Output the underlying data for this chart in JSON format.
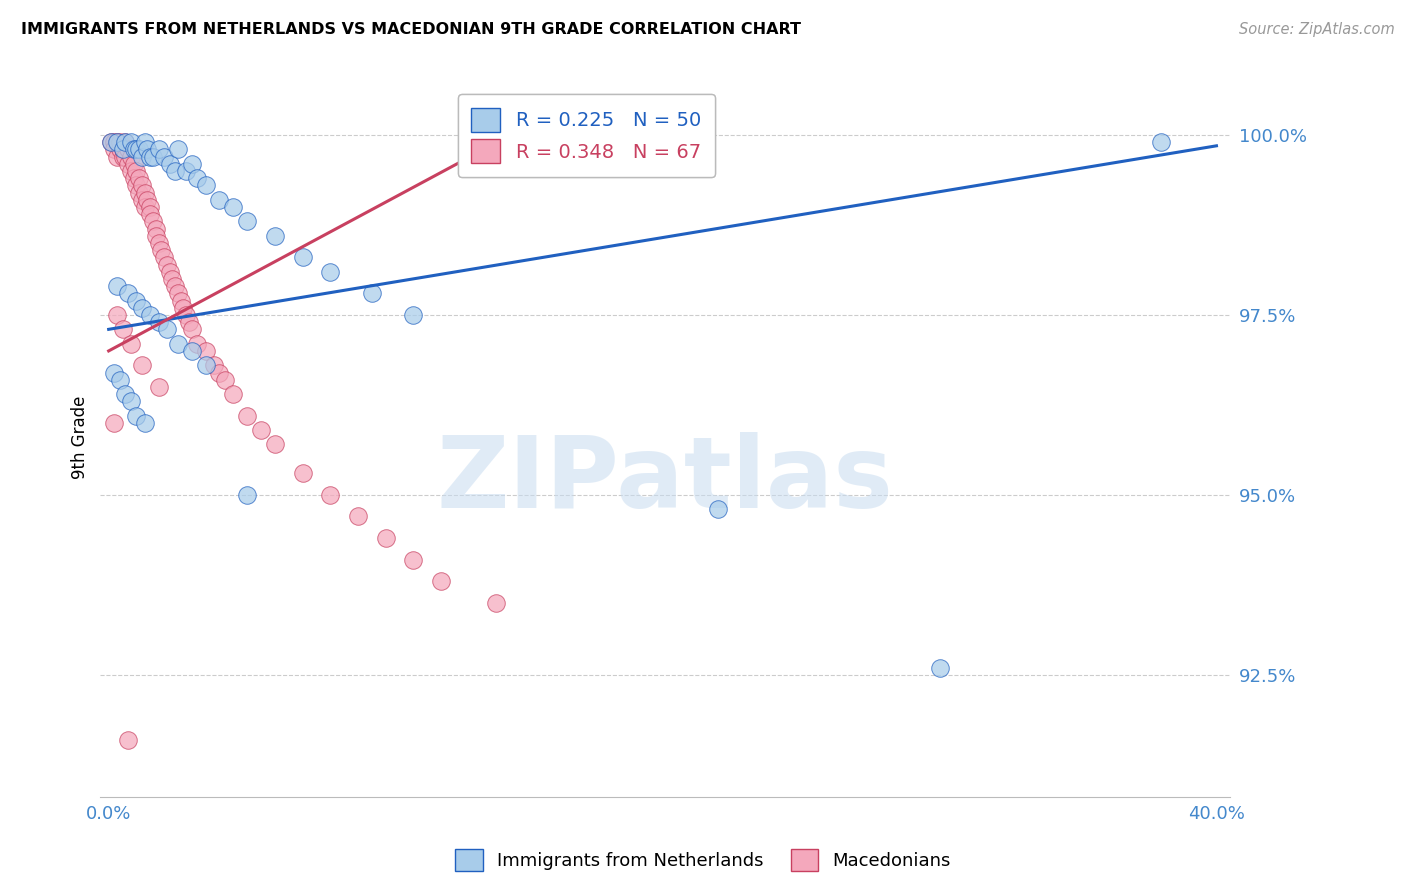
{
  "title": "IMMIGRANTS FROM NETHERLANDS VS MACEDONIAN 9TH GRADE CORRELATION CHART",
  "source": "Source: ZipAtlas.com",
  "ylabel": "9th Grade",
  "legend_label_blue": "Immigrants from Netherlands",
  "legend_label_pink": "Macedonians",
  "R_blue": 0.225,
  "N_blue": 50,
  "R_pink": 0.348,
  "N_pink": 67,
  "xlim": [
    -0.003,
    0.405
  ],
  "ylim": [
    0.908,
    1.008
  ],
  "yticks": [
    0.925,
    0.95,
    0.975,
    1.0
  ],
  "ytick_labels": [
    "92.5%",
    "95.0%",
    "97.5%",
    "100.0%"
  ],
  "xticks": [
    0.0,
    0.05,
    0.1,
    0.15,
    0.2,
    0.25,
    0.3,
    0.35,
    0.4
  ],
  "xtick_labels": [
    "0.0%",
    "",
    "",
    "",
    "",
    "",
    "",
    "",
    "40.0%"
  ],
  "color_blue": "#A8CCEA",
  "color_pink": "#F4A8BC",
  "color_blue_line": "#2060C0",
  "color_pink_line": "#C84060",
  "color_axis_text": "#4488CC",
  "watermark_text": "ZIPatlas",
  "blue_scatter_x": [
    0.001,
    0.003,
    0.005,
    0.006,
    0.008,
    0.009,
    0.01,
    0.011,
    0.012,
    0.013,
    0.014,
    0.015,
    0.016,
    0.018,
    0.02,
    0.022,
    0.024,
    0.025,
    0.028,
    0.03,
    0.032,
    0.035,
    0.04,
    0.045,
    0.05,
    0.06,
    0.07,
    0.08,
    0.095,
    0.11,
    0.003,
    0.007,
    0.01,
    0.012,
    0.015,
    0.018,
    0.021,
    0.025,
    0.03,
    0.035,
    0.002,
    0.004,
    0.006,
    0.008,
    0.01,
    0.013,
    0.05,
    0.22,
    0.3,
    0.38
  ],
  "blue_scatter_y": [
    0.999,
    0.999,
    0.998,
    0.999,
    0.999,
    0.998,
    0.998,
    0.998,
    0.997,
    0.999,
    0.998,
    0.997,
    0.997,
    0.998,
    0.997,
    0.996,
    0.995,
    0.998,
    0.995,
    0.996,
    0.994,
    0.993,
    0.991,
    0.99,
    0.988,
    0.986,
    0.983,
    0.981,
    0.978,
    0.975,
    0.979,
    0.978,
    0.977,
    0.976,
    0.975,
    0.974,
    0.973,
    0.971,
    0.97,
    0.968,
    0.967,
    0.966,
    0.964,
    0.963,
    0.961,
    0.96,
    0.95,
    0.948,
    0.926,
    0.999
  ],
  "pink_scatter_x": [
    0.001,
    0.002,
    0.002,
    0.003,
    0.003,
    0.004,
    0.004,
    0.005,
    0.005,
    0.006,
    0.006,
    0.007,
    0.007,
    0.008,
    0.008,
    0.009,
    0.009,
    0.01,
    0.01,
    0.011,
    0.011,
    0.012,
    0.012,
    0.013,
    0.013,
    0.014,
    0.015,
    0.015,
    0.016,
    0.017,
    0.017,
    0.018,
    0.019,
    0.02,
    0.021,
    0.022,
    0.023,
    0.024,
    0.025,
    0.026,
    0.027,
    0.028,
    0.029,
    0.03,
    0.032,
    0.035,
    0.038,
    0.04,
    0.042,
    0.045,
    0.05,
    0.055,
    0.06,
    0.07,
    0.08,
    0.09,
    0.1,
    0.11,
    0.12,
    0.14,
    0.003,
    0.005,
    0.008,
    0.012,
    0.018,
    0.002,
    0.007
  ],
  "pink_scatter_y": [
    0.999,
    0.999,
    0.998,
    0.999,
    0.997,
    0.998,
    0.999,
    0.997,
    0.998,
    0.999,
    0.997,
    0.998,
    0.996,
    0.997,
    0.995,
    0.996,
    0.994,
    0.995,
    0.993,
    0.994,
    0.992,
    0.993,
    0.991,
    0.992,
    0.99,
    0.991,
    0.99,
    0.989,
    0.988,
    0.987,
    0.986,
    0.985,
    0.984,
    0.983,
    0.982,
    0.981,
    0.98,
    0.979,
    0.978,
    0.977,
    0.976,
    0.975,
    0.974,
    0.973,
    0.971,
    0.97,
    0.968,
    0.967,
    0.966,
    0.964,
    0.961,
    0.959,
    0.957,
    0.953,
    0.95,
    0.947,
    0.944,
    0.941,
    0.938,
    0.935,
    0.975,
    0.973,
    0.971,
    0.968,
    0.965,
    0.96,
    0.916
  ],
  "blue_trend_x": [
    0.0,
    0.4
  ],
  "blue_trend_y": [
    0.973,
    0.9985
  ],
  "pink_trend_x": [
    0.0,
    0.15
  ],
  "pink_trend_y": [
    0.97,
    1.001
  ]
}
